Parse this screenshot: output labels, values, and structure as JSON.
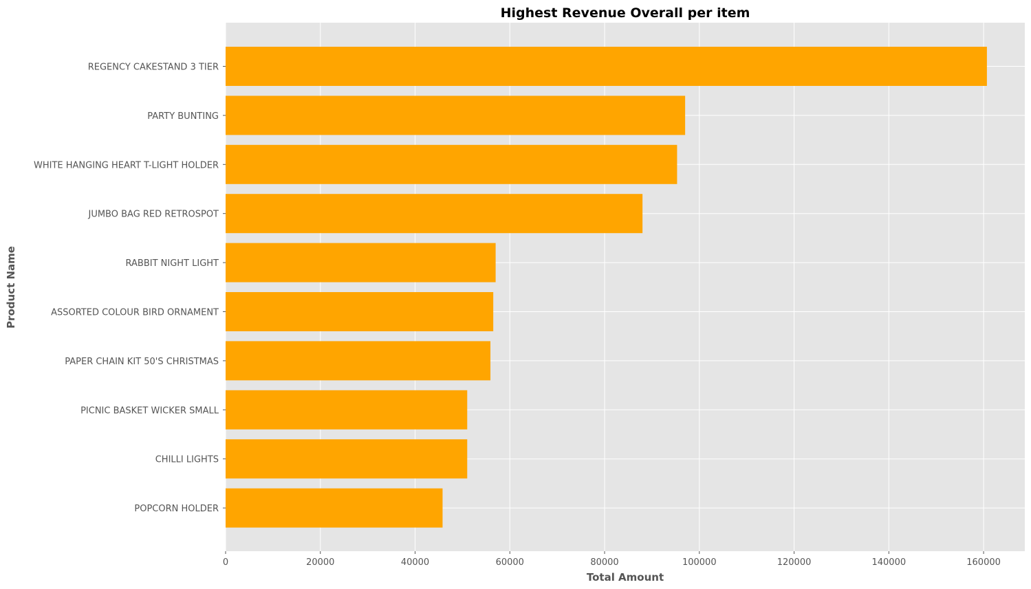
{
  "chart_data": {
    "type": "bar",
    "orientation": "horizontal",
    "title": "Highest Revenue Overall per item",
    "xlabel": "Total Amount",
    "ylabel": "Product Name",
    "categories": [
      "REGENCY CAKESTAND 3 TIER",
      "PARTY BUNTING",
      "WHITE HANGING HEART T-LIGHT HOLDER",
      "JUMBO BAG RED RETROSPOT",
      "RABBIT NIGHT LIGHT",
      "ASSORTED COLOUR BIRD ORNAMENT",
      "PAPER CHAIN KIT 50'S CHRISTMAS ",
      "PICNIC BASKET WICKER SMALL",
      "CHILLI LIGHTS",
      "POPCORN HOLDER"
    ],
    "values": [
      160700,
      97000,
      95300,
      88000,
      57000,
      56500,
      55900,
      51000,
      51000,
      45800
    ],
    "xlim": [
      0,
      168700
    ],
    "xticks": [
      0,
      20000,
      40000,
      60000,
      80000,
      100000,
      120000,
      140000,
      160000
    ],
    "grid": true,
    "bar_color": "#ffa500",
    "background_color": "#e5e5e5",
    "grid_color": "#ffffff"
  }
}
